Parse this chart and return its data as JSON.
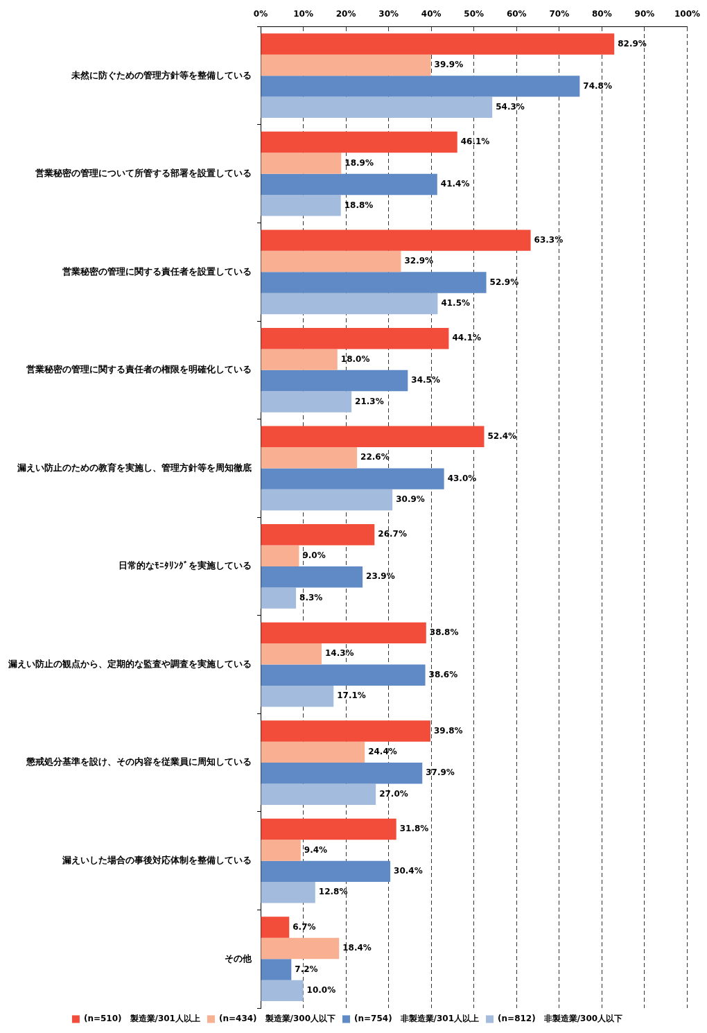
{
  "chart_data": {
    "type": "bar",
    "orientation": "horizontal",
    "categories": [
      "未然に防ぐための管理方針等を整備している",
      "営業秘密の管理について所管する部署を設置している",
      "営業秘密の管理に関する責任者を設置している",
      "営業秘密の管理に関する責任者の権限を明確化している",
      "漏えい防止のための教育を実施し、管理方針等を周知徹底",
      "日常的なﾓﾆﾀﾘﾝｸﾞを実施している",
      "漏えい防止の観点から、定期的な監査や調査を実施している",
      "懲戒処分基準を設け、その内容を従業員に周知している",
      "漏えいした場合の事後対応体制を整備している",
      "その他"
    ],
    "series": [
      {
        "name": "(n=510)　製造業/301人以上",
        "color": "#f24c3a",
        "values": [
          82.9,
          46.1,
          63.3,
          44.1,
          52.4,
          26.7,
          38.8,
          39.8,
          31.8,
          6.7
        ],
        "value_labels": [
          "82.9%",
          "46.1%",
          "63.3%",
          "44.1%",
          "52.4%",
          "26.7%",
          "38.8%",
          "39.8%",
          "31.8%",
          "6.7%"
        ]
      },
      {
        "name": "(n=434)　製造業/300人以下",
        "color": "#f9b092",
        "values": [
          39.9,
          18.9,
          32.9,
          18.0,
          22.6,
          9.0,
          14.3,
          24.4,
          9.4,
          18.4
        ],
        "value_labels": [
          "39.9%",
          "18.9%",
          "32.9%",
          "18.0%",
          "22.6%",
          "9.0%",
          "14.3%",
          "24.4%",
          "9.4%",
          "18.4%"
        ]
      },
      {
        "name": "(n=754)　非製造業/301人以上",
        "color": "#5f8ac5",
        "values": [
          74.8,
          41.4,
          52.9,
          34.5,
          43.0,
          23.9,
          38.6,
          37.9,
          30.4,
          7.2
        ],
        "value_labels": [
          "74.8%",
          "41.4%",
          "52.9%",
          "34.5%",
          "43.0%",
          "23.9%",
          "38.6%",
          "37.9%",
          "30.4%",
          "7.2%"
        ]
      },
      {
        "name": "(n=812)　非製造業/300人以下",
        "color": "#a3bbdd",
        "values": [
          54.3,
          18.8,
          41.5,
          21.3,
          30.9,
          8.3,
          17.1,
          27.0,
          12.8,
          10.0
        ],
        "value_labels": [
          "54.3%",
          "18.8%",
          "41.5%",
          "21.3%",
          "30.9%",
          "8.3%",
          "17.1%",
          "27.0%",
          "12.8%",
          "10.0%"
        ]
      }
    ],
    "xlim": [
      0,
      100
    ],
    "xticks": [
      {
        "value": 0,
        "label": "0%"
      },
      {
        "value": 10,
        "label": "10%"
      },
      {
        "value": 20,
        "label": "20%"
      },
      {
        "value": 30,
        "label": "30%"
      },
      {
        "value": 40,
        "label": "40%"
      },
      {
        "value": 50,
        "label": "50%"
      },
      {
        "value": 60,
        "label": "60%"
      },
      {
        "value": 70,
        "label": "70%"
      },
      {
        "value": 80,
        "label": "80%"
      },
      {
        "value": 90,
        "label": "90%"
      },
      {
        "value": 100,
        "label": "100%"
      }
    ],
    "grid": "x",
    "legend": "bottom"
  }
}
